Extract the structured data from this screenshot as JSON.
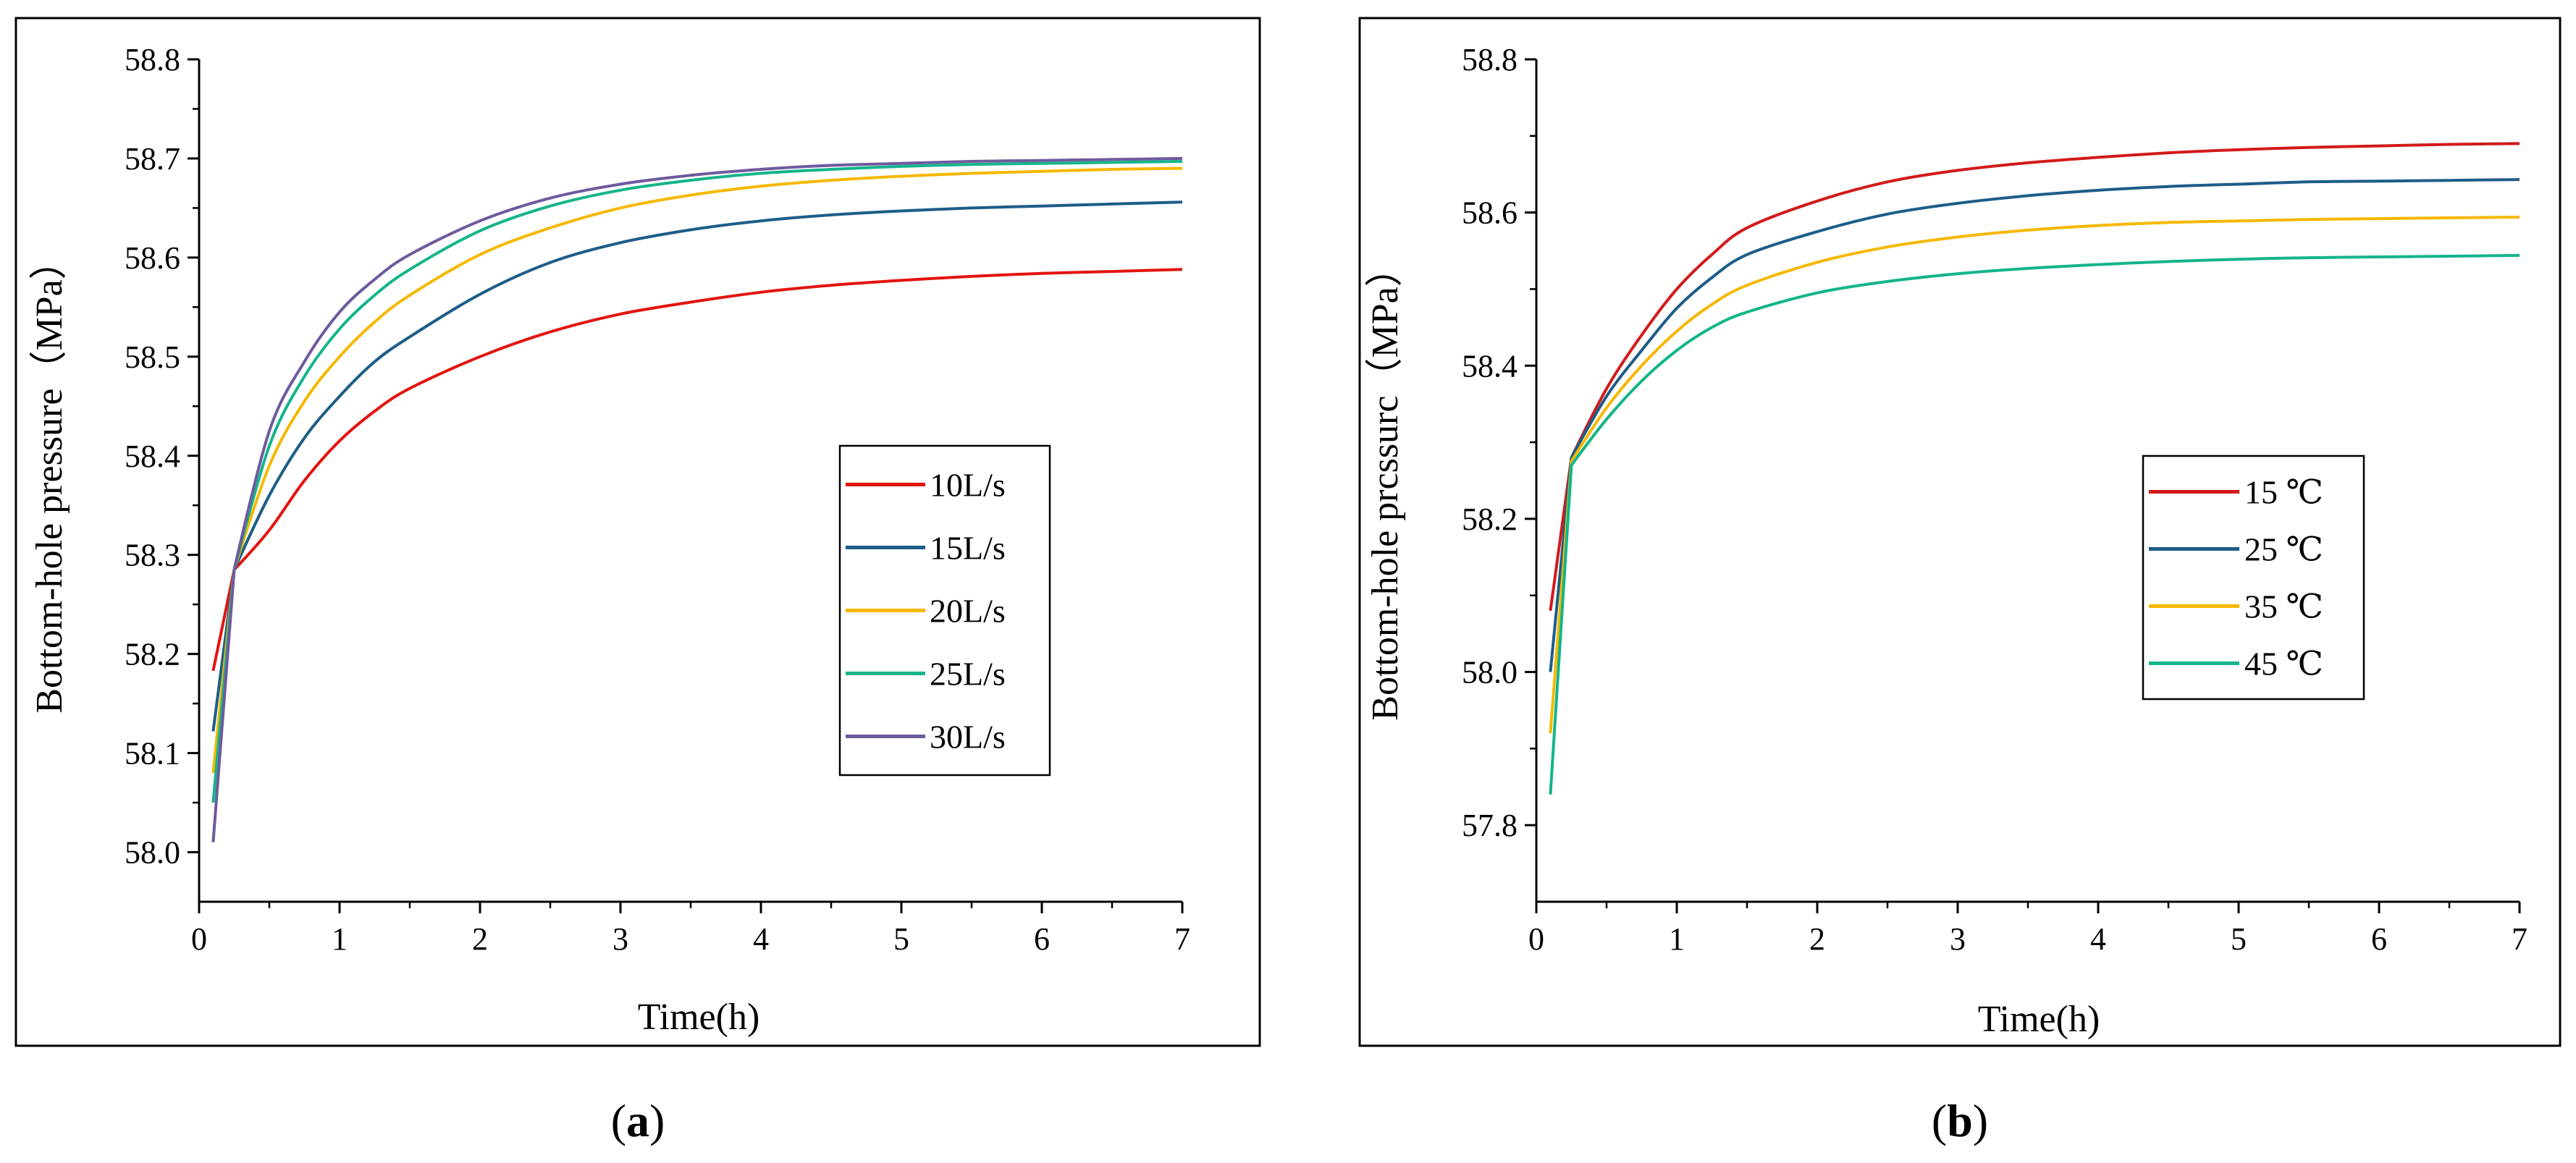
{
  "chart_data": [
    {
      "type": "line",
      "panel_label": "a",
      "title": "",
      "xlabel": "Time(h)",
      "ylabel": "Bottom-hole  pressure（MPa）",
      "xlim": [
        0,
        7
      ],
      "ylim": [
        57.95,
        58.8
      ],
      "xticks": [
        "0",
        "1",
        "2",
        "3",
        "4",
        "5",
        "6",
        "7"
      ],
      "yticks": [
        "58.0",
        "58.1",
        "58.2",
        "58.3",
        "58.4",
        "58.5",
        "58.6",
        "58.7",
        "58.8"
      ],
      "legend_position": "center-right",
      "x": [
        0.1,
        0.25,
        0.5,
        0.75,
        1.0,
        1.25,
        1.5,
        2.0,
        2.5,
        3.0,
        3.5,
        4.0,
        4.5,
        5.0,
        5.5,
        6.0,
        6.5,
        7.0
      ],
      "series": [
        {
          "name": "10L/s",
          "color": "#e3140f",
          "values": [
            58.183,
            58.285,
            58.325,
            58.375,
            58.415,
            58.445,
            58.468,
            58.5,
            58.525,
            58.543,
            58.555,
            58.565,
            58.572,
            58.577,
            58.581,
            58.584,
            58.586,
            58.588
          ]
        },
        {
          "name": "15L/s",
          "color": "#1d5d88",
          "values": [
            58.122,
            58.285,
            58.36,
            58.418,
            58.46,
            58.495,
            58.52,
            58.563,
            58.595,
            58.615,
            58.628,
            58.637,
            58.643,
            58.647,
            58.65,
            58.652,
            58.654,
            58.656
          ]
        },
        {
          "name": "20L/s",
          "color": "#f5b800",
          "values": [
            58.08,
            58.285,
            58.39,
            58.455,
            58.5,
            58.535,
            58.562,
            58.603,
            58.63,
            58.65,
            58.663,
            58.672,
            58.678,
            58.682,
            58.685,
            58.687,
            58.689,
            58.69
          ]
        },
        {
          "name": "25L/s",
          "color": "#14b48a",
          "values": [
            58.05,
            58.285,
            58.41,
            58.48,
            58.528,
            58.562,
            58.588,
            58.627,
            58.652,
            58.668,
            58.678,
            58.685,
            58.689,
            58.692,
            58.694,
            58.695,
            58.696,
            58.697
          ]
        },
        {
          "name": "30L/s",
          "color": "#6e5a9e",
          "values": [
            58.01,
            58.285,
            58.425,
            58.495,
            58.545,
            58.578,
            58.603,
            58.637,
            58.66,
            58.674,
            58.683,
            58.689,
            58.693,
            58.695,
            58.697,
            58.698,
            58.699,
            58.7
          ]
        }
      ]
    },
    {
      "type": "line",
      "panel_label": "b",
      "title": "",
      "xlabel": "Time(h)",
      "ylabel": "Bottom-hole  prcssurc（MPa）",
      "xlim": [
        0,
        7
      ],
      "ylim": [
        57.7,
        58.8
      ],
      "xticks": [
        "0",
        "1",
        "2",
        "3",
        "4",
        "5",
        "6",
        "7"
      ],
      "yticks": [
        "57.8",
        "58.0",
        "58.2",
        "58.4",
        "58.6",
        "58.8"
      ],
      "legend_position": "center-right",
      "x": [
        0.1,
        0.25,
        0.5,
        0.75,
        1.0,
        1.25,
        1.5,
        2.0,
        2.5,
        3.0,
        3.5,
        4.0,
        4.5,
        5.0,
        5.5,
        6.0,
        6.5,
        7.0
      ],
      "series": [
        {
          "name": "15 ℃",
          "color": "#d21a1a",
          "values": [
            58.08,
            58.28,
            58.37,
            58.44,
            58.5,
            58.545,
            58.58,
            58.615,
            58.64,
            58.655,
            58.665,
            58.672,
            58.678,
            58.682,
            58.685,
            58.687,
            58.689,
            58.69
          ]
        },
        {
          "name": "25 ℃",
          "color": "#1d5d88",
          "values": [
            58.0,
            58.28,
            58.36,
            58.42,
            58.475,
            58.515,
            58.545,
            58.575,
            58.598,
            58.612,
            58.622,
            58.629,
            58.634,
            58.637,
            58.64,
            58.641,
            58.642,
            58.643
          ]
        },
        {
          "name": "35 ℃",
          "color": "#f5b800",
          "values": [
            57.92,
            58.275,
            58.345,
            58.4,
            58.445,
            58.48,
            58.505,
            58.535,
            58.555,
            58.568,
            58.577,
            58.583,
            58.587,
            58.589,
            58.591,
            58.592,
            58.593,
            58.594
          ]
        },
        {
          "name": "45 ℃",
          "color": "#14b48a",
          "values": [
            57.84,
            58.27,
            58.33,
            58.38,
            58.42,
            58.45,
            58.47,
            58.495,
            58.51,
            58.52,
            58.527,
            58.532,
            58.536,
            58.539,
            58.541,
            58.542,
            58.543,
            58.544
          ]
        }
      ]
    }
  ]
}
